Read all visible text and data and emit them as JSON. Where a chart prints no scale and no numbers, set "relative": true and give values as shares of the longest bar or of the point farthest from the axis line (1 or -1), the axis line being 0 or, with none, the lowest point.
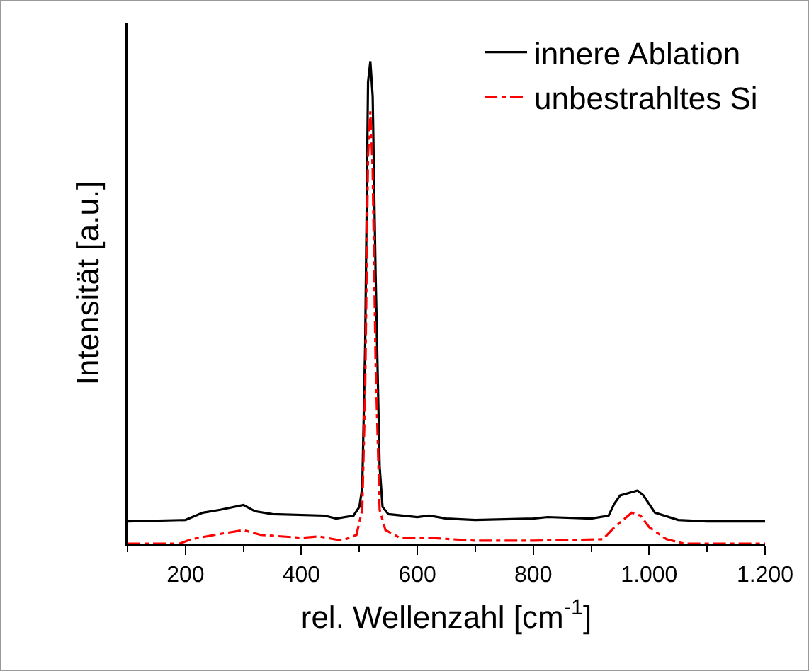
{
  "chart_data": {
    "type": "line",
    "xlabel": "rel. Wellenzahl [cm$^{-1}$]",
    "ylabel": "Intensität [a.u.]",
    "relative": true,
    "grid": false,
    "legend": "top right",
    "marker": "none",
    "xlim": [
      100,
      1200
    ],
    "xticks": [
      200,
      400,
      600,
      800,
      {
        "value": 1000,
        "label": "1.000"
      },
      {
        "value": 1200,
        "label": "1.200"
      }
    ],
    "series": [
      {
        "name": "innere Ablation",
        "color": "#000000",
        "line_style": "solid",
        "x": [
          100,
          200,
          230,
          260,
          300,
          320,
          350,
          440,
          460,
          490,
          500,
          505,
          510,
          515,
          519,
          523,
          528,
          535,
          540,
          550,
          600,
          620,
          650,
          700,
          800,
          825,
          900,
          930,
          940,
          950,
          980,
          990,
          1010,
          1050,
          1100,
          1200
        ],
        "values": [
          0.046,
          0.049,
          0.064,
          0.07,
          0.08,
          0.067,
          0.061,
          0.058,
          0.052,
          0.058,
          0.076,
          0.116,
          0.41,
          0.957,
          1,
          0.927,
          0.56,
          0.16,
          0.076,
          0.061,
          0.055,
          0.058,
          0.052,
          0.049,
          0.052,
          0.055,
          0.052,
          0.058,
          0.083,
          0.1,
          0.11,
          0.1,
          0.064,
          0.049,
          0.046,
          0.046
        ]
      },
      {
        "name": "unbestrahltes Si",
        "color": "#ff0000",
        "line_style": "dashdot",
        "x": [
          100,
          190,
          210,
          250,
          300,
          330,
          400,
          430,
          470,
          495,
          505,
          510,
          515,
          519,
          523,
          528,
          535,
          545,
          570,
          620,
          700,
          800,
          920,
          940,
          970,
          985,
          1000,
          1030,
          1060,
          1200
        ],
        "values": [
          0,
          0,
          0.009,
          0.018,
          0.028,
          0.018,
          0.012,
          0.015,
          0.006,
          0.018,
          0.07,
          0.315,
          0.804,
          0.896,
          0.774,
          0.376,
          0.07,
          0.028,
          0.012,
          0.012,
          0.006,
          0.006,
          0.009,
          0.034,
          0.064,
          0.058,
          0.034,
          0.009,
          0,
          0
        ]
      }
    ]
  }
}
